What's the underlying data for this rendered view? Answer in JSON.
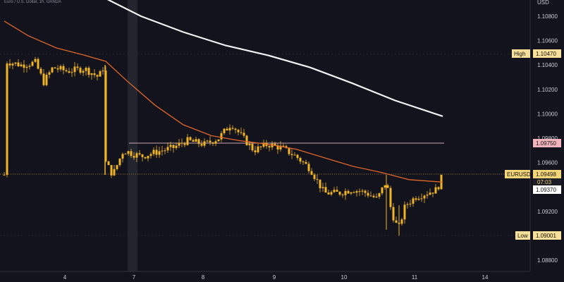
{
  "header": {
    "text": "Euro / U.S. Dollar, 1h, OANDA"
  },
  "chart_data": {
    "type": "candlestick",
    "currency": "USD",
    "y_ticks": [
      "1.10800",
      "1.10600",
      "1.10400",
      "1.10200",
      "1.10000",
      "1.09800",
      "1.09600",
      "1.09200",
      "1.08800"
    ],
    "x_ticks": [
      "4",
      "7",
      "8",
      "9",
      "10",
      "11",
      "14"
    ],
    "colors": {
      "candle": "#f0b429",
      "ma_fast": "#e0662a",
      "ma_slow": "#f2f2f2",
      "high_tag": "#f7e09a",
      "resistance_tag": "#f4b4bd",
      "price_tag": "#f7d67a",
      "support_tag": "#ffffff",
      "low_tag": "#f7e09a",
      "accent_line": "#f0b429"
    },
    "levels": {
      "high": {
        "label": "High",
        "value": "1.10470"
      },
      "resistance": {
        "label": "",
        "value": "1.09750"
      },
      "price": {
        "label": "EURUSD",
        "value": "1.09498",
        "countdown": "07:03"
      },
      "support": {
        "label": "",
        "value": "1.09370"
      },
      "low": {
        "label": "Low",
        "value": "1.09001"
      }
    }
  }
}
